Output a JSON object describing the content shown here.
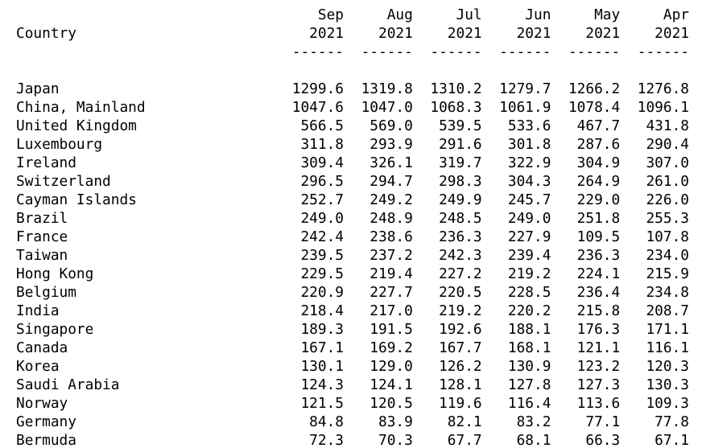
{
  "table": {
    "header": {
      "country": "Country",
      "columns": [
        {
          "month": "Sep",
          "year": "2021",
          "rule": "------"
        },
        {
          "month": "Aug",
          "year": "2021",
          "rule": "------"
        },
        {
          "month": "Jul",
          "year": "2021",
          "rule": "------"
        },
        {
          "month": "Jun",
          "year": "2021",
          "rule": "------"
        },
        {
          "month": "May",
          "year": "2021",
          "rule": "------"
        },
        {
          "month": "Apr",
          "year": "2021",
          "rule": "------"
        }
      ]
    },
    "rows": [
      {
        "country": "Japan",
        "values": [
          "1299.6",
          "1319.8",
          "1310.2",
          "1279.7",
          "1266.2",
          "1276.8"
        ]
      },
      {
        "country": "China, Mainland",
        "values": [
          "1047.6",
          "1047.0",
          "1068.3",
          "1061.9",
          "1078.4",
          "1096.1"
        ]
      },
      {
        "country": "United Kingdom",
        "values": [
          "566.5",
          "569.0",
          "539.5",
          "533.6",
          "467.7",
          "431.8"
        ]
      },
      {
        "country": "Luxembourg",
        "values": [
          "311.8",
          "293.9",
          "291.6",
          "301.8",
          "287.6",
          "290.4"
        ]
      },
      {
        "country": "Ireland",
        "values": [
          "309.4",
          "326.1",
          "319.7",
          "322.9",
          "304.9",
          "307.0"
        ]
      },
      {
        "country": "Switzerland",
        "values": [
          "296.5",
          "294.7",
          "298.3",
          "304.3",
          "264.9",
          "261.0"
        ]
      },
      {
        "country": "Cayman Islands",
        "values": [
          "252.7",
          "249.2",
          "249.9",
          "245.7",
          "229.0",
          "226.0"
        ]
      },
      {
        "country": "Brazil",
        "values": [
          "249.0",
          "248.9",
          "248.5",
          "249.0",
          "251.8",
          "255.3"
        ]
      },
      {
        "country": "France",
        "values": [
          "242.4",
          "238.6",
          "236.3",
          "227.9",
          "109.5",
          "107.8"
        ]
      },
      {
        "country": "Taiwan",
        "values": [
          "239.5",
          "237.2",
          "242.3",
          "239.4",
          "236.3",
          "234.0"
        ]
      },
      {
        "country": "Hong Kong",
        "values": [
          "229.5",
          "219.4",
          "227.2",
          "219.2",
          "224.1",
          "215.9"
        ]
      },
      {
        "country": "Belgium",
        "values": [
          "220.9",
          "227.7",
          "220.5",
          "228.5",
          "236.4",
          "234.8"
        ]
      },
      {
        "country": "India",
        "values": [
          "218.4",
          "217.0",
          "219.2",
          "220.2",
          "215.8",
          "208.7"
        ]
      },
      {
        "country": "Singapore",
        "values": [
          "189.3",
          "191.5",
          "192.6",
          "188.1",
          "176.3",
          "171.1"
        ]
      },
      {
        "country": "Canada",
        "values": [
          "167.1",
          "169.2",
          "167.7",
          "168.1",
          "121.1",
          "116.1"
        ]
      },
      {
        "country": "Korea",
        "values": [
          "130.1",
          "129.0",
          "126.2",
          "130.9",
          "123.2",
          "120.3"
        ]
      },
      {
        "country": "Saudi Arabia",
        "values": [
          "124.3",
          "124.1",
          "128.1",
          "127.8",
          "127.3",
          "130.3"
        ]
      },
      {
        "country": "Norway",
        "values": [
          "121.5",
          "120.5",
          "119.6",
          "116.4",
          "113.6",
          "109.3"
        ]
      },
      {
        "country": "Germany",
        "values": [
          "84.8",
          "83.9",
          "82.1",
          "83.2",
          "77.1",
          "77.8"
        ]
      },
      {
        "country": "Bermuda",
        "values": [
          "72.3",
          "70.3",
          "67.7",
          "68.1",
          "66.3",
          "67.1"
        ]
      }
    ]
  }
}
